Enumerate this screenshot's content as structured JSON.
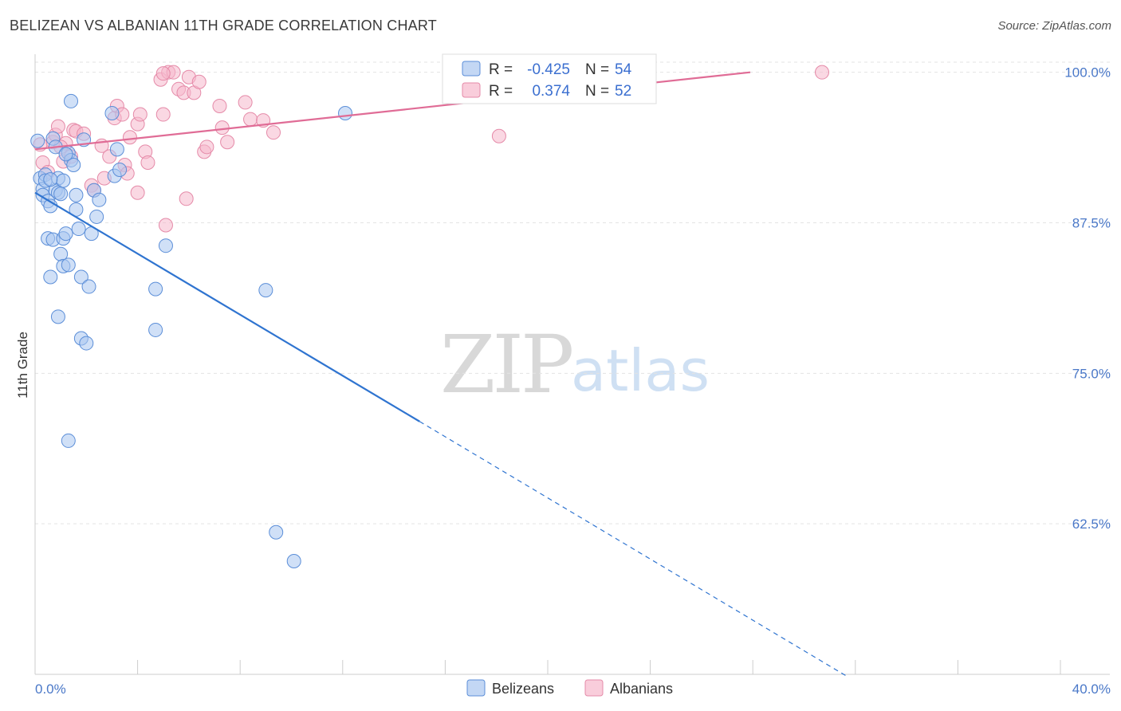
{
  "header": {
    "title": "BELIZEAN VS ALBANIAN 11TH GRADE CORRELATION CHART",
    "source": "Source: ZipAtlas.com"
  },
  "watermark": {
    "zip": "ZIP",
    "atlas": "atlas"
  },
  "colors": {
    "belizean_fill": "#a9c6f0",
    "belizean_stroke": "#5b8ed8",
    "belizean_line": "#2f74d0",
    "albanian_fill": "#f6b8cc",
    "albanian_stroke": "#e58aa8",
    "albanian_line": "#e06c96",
    "grid": "#e3e3e3",
    "tick_label": "#4a78c8"
  },
  "legend": {
    "row1": {
      "r_label": "R =",
      "r_value": "-0.425",
      "n_label": "N =",
      "n_value": "54"
    },
    "row2": {
      "r_label": "R =",
      "r_value": "0.374",
      "n_label": "N =",
      "n_value": "52"
    }
  },
  "bottom_legend": {
    "belizeans": "Belizeans",
    "albanians": "Albanians"
  },
  "chart_data": {
    "type": "scatter",
    "title": "BELIZEAN VS ALBANIAN 11TH GRADE CORRELATION CHART",
    "xlabel": "",
    "ylabel": "11th Grade",
    "xlim": [
      0,
      40
    ],
    "ylim": [
      50,
      101.5
    ],
    "x_tick_labels": [
      "0.0%",
      "40.0%"
    ],
    "y_ticks": [
      {
        "value": 100,
        "label": "100.0%"
      },
      {
        "value": 87.5,
        "label": "87.5%"
      },
      {
        "value": 75,
        "label": "75.0%"
      },
      {
        "value": 62.5,
        "label": "62.5%"
      }
    ],
    "series": [
      {
        "name": "Belizeans",
        "r": -0.425,
        "n": 54,
        "trend": {
          "x0": 0,
          "y0": 90.0,
          "x_solid_end": 15.0,
          "y_solid_end": 71.0,
          "x1": 31.7,
          "y1": 49.8
        },
        "points": [
          [
            0.2,
            91.2
          ],
          [
            0.3,
            90.3
          ],
          [
            0.3,
            89.8
          ],
          [
            0.4,
            91.5
          ],
          [
            0.4,
            91.0
          ],
          [
            0.5,
            89.3
          ],
          [
            0.6,
            88.9
          ],
          [
            0.5,
            86.2
          ],
          [
            0.7,
            86.1
          ],
          [
            0.6,
            83.0
          ],
          [
            0.7,
            94.5
          ],
          [
            0.8,
            93.8
          ],
          [
            0.9,
            91.2
          ],
          [
            0.8,
            90.2
          ],
          [
            0.9,
            90.0
          ],
          [
            1.0,
            89.9
          ],
          [
            1.1,
            91.0
          ],
          [
            1.1,
            86.2
          ],
          [
            1.0,
            84.9
          ],
          [
            1.1,
            83.9
          ],
          [
            1.2,
            86.6
          ],
          [
            1.3,
            93.3
          ],
          [
            1.4,
            92.7
          ],
          [
            1.3,
            84.0
          ],
          [
            1.5,
            92.3
          ],
          [
            1.6,
            89.8
          ],
          [
            1.6,
            88.6
          ],
          [
            1.7,
            87.0
          ],
          [
            1.8,
            83.0
          ],
          [
            1.8,
            77.9
          ],
          [
            1.9,
            94.4
          ],
          [
            2.0,
            77.5
          ],
          [
            2.1,
            82.2
          ],
          [
            2.2,
            86.6
          ],
          [
            2.3,
            90.2
          ],
          [
            2.5,
            89.4
          ],
          [
            2.4,
            88.0
          ],
          [
            0.9,
            79.7
          ],
          [
            1.3,
            69.4
          ],
          [
            1.4,
            97.6
          ],
          [
            3.0,
            96.6
          ],
          [
            3.1,
            91.4
          ],
          [
            3.2,
            93.6
          ],
          [
            3.3,
            91.9
          ],
          [
            4.7,
            82.0
          ],
          [
            4.7,
            78.6
          ],
          [
            5.1,
            85.6
          ],
          [
            9.0,
            81.9
          ],
          [
            9.4,
            61.8
          ],
          [
            10.1,
            59.4
          ],
          [
            12.1,
            96.6
          ],
          [
            0.1,
            94.3
          ],
          [
            0.6,
            91.1
          ],
          [
            1.2,
            93.2
          ]
        ]
      },
      {
        "name": "Albanians",
        "r": 0.374,
        "n": 52,
        "trend": {
          "x0": 0,
          "y0": 93.6,
          "x1": 27.9,
          "y1": 100.0
        },
        "points": [
          [
            0.2,
            94.0
          ],
          [
            0.3,
            92.5
          ],
          [
            0.5,
            91.7
          ],
          [
            0.7,
            94.2
          ],
          [
            0.8,
            94.8
          ],
          [
            0.9,
            95.5
          ],
          [
            1.1,
            92.6
          ],
          [
            1.2,
            94.1
          ],
          [
            1.4,
            93.0
          ],
          [
            1.5,
            95.2
          ],
          [
            1.6,
            95.1
          ],
          [
            1.9,
            94.9
          ],
          [
            2.2,
            90.6
          ],
          [
            2.3,
            90.2
          ],
          [
            2.6,
            93.9
          ],
          [
            2.7,
            91.2
          ],
          [
            2.9,
            93.0
          ],
          [
            3.1,
            96.2
          ],
          [
            3.2,
            97.2
          ],
          [
            3.4,
            96.5
          ],
          [
            3.5,
            92.3
          ],
          [
            3.6,
            91.6
          ],
          [
            3.7,
            94.6
          ],
          [
            4.0,
            95.7
          ],
          [
            4.1,
            96.5
          ],
          [
            4.3,
            93.4
          ],
          [
            4.4,
            92.5
          ],
          [
            4.0,
            90.0
          ],
          [
            4.9,
            99.4
          ],
          [
            5.0,
            96.5
          ],
          [
            5.1,
            87.3
          ],
          [
            5.2,
            100.0
          ],
          [
            5.4,
            100.0
          ],
          [
            5.6,
            98.6
          ],
          [
            5.8,
            98.3
          ],
          [
            5.9,
            89.5
          ],
          [
            6.0,
            99.6
          ],
          [
            6.2,
            98.3
          ],
          [
            6.4,
            99.2
          ],
          [
            6.6,
            93.4
          ],
          [
            6.7,
            93.8
          ],
          [
            7.2,
            97.2
          ],
          [
            7.3,
            95.4
          ],
          [
            7.5,
            94.2
          ],
          [
            8.2,
            97.5
          ],
          [
            8.4,
            96.1
          ],
          [
            8.9,
            96.0
          ],
          [
            9.3,
            95.0
          ],
          [
            18.1,
            94.7
          ],
          [
            30.7,
            100.0
          ],
          [
            5.0,
            99.9
          ],
          [
            1.0,
            93.8
          ]
        ]
      }
    ]
  }
}
